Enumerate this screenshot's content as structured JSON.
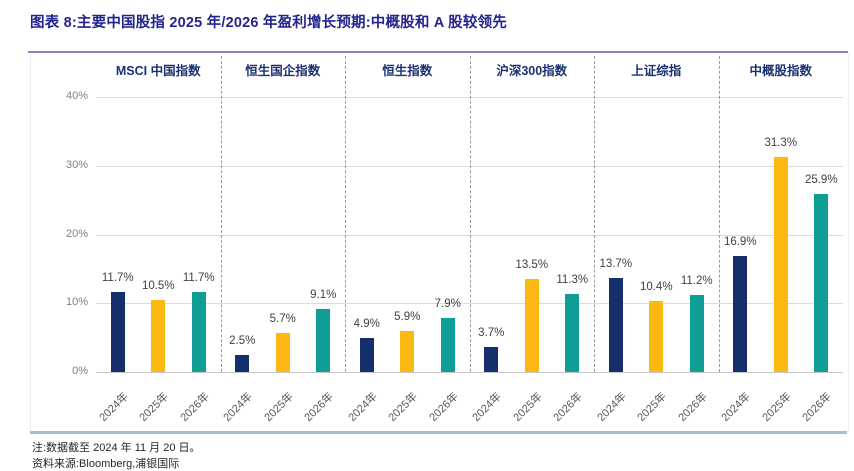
{
  "header": {
    "title": "图表 8:主要中国股指 2025 年/2026 年盈利增长预期:中概股和 A 股较领先"
  },
  "notes": {
    "data_cutoff": "注:数据截至 2024 年 11 月 20 日。",
    "source": "资料来源:Bloomberg,浦银国际"
  },
  "colors": {
    "title_text": "#23238f",
    "title_rule": "#8484bd",
    "bottom_rule": "#a3bdd6",
    "header_text": "#1c3172",
    "bar_2024": "#142F6B",
    "bar_2025": "#FDB913",
    "bar_2026": "#0E9E96",
    "gridline": "#dcdcdc",
    "axis_text": "#7f7f7f"
  },
  "chart_data": {
    "type": "bar",
    "title": "主要中国股指 2025 年/2026 年盈利增长预期",
    "categories": [
      "MSCI 中国指数",
      "恒生国企指数",
      "恒生指数",
      "沪深300指数",
      "上证综指",
      "中概股指数"
    ],
    "series": [
      {
        "name": "2024年",
        "color": "#142F6B",
        "values": [
          11.7,
          2.5,
          4.9,
          3.7,
          13.7,
          16.9
        ]
      },
      {
        "name": "2025年",
        "color": "#FDB913",
        "values": [
          10.5,
          5.7,
          5.9,
          13.5,
          10.4,
          31.3
        ]
      },
      {
        "name": "2026年",
        "color": "#0E9E96",
        "values": [
          11.7,
          9.1,
          7.9,
          11.3,
          11.2,
          25.9
        ]
      }
    ],
    "x_tick_labels": [
      "2024年",
      "2025年",
      "2026年"
    ],
    "ylabel": "",
    "xlabel": "",
    "ylim": [
      0,
      40
    ],
    "yticks": [
      "0%",
      "10%",
      "20%",
      "30%",
      "40%"
    ],
    "value_suffix": "%",
    "grid": true,
    "legend_position": "none",
    "group_separators": "dashed"
  }
}
